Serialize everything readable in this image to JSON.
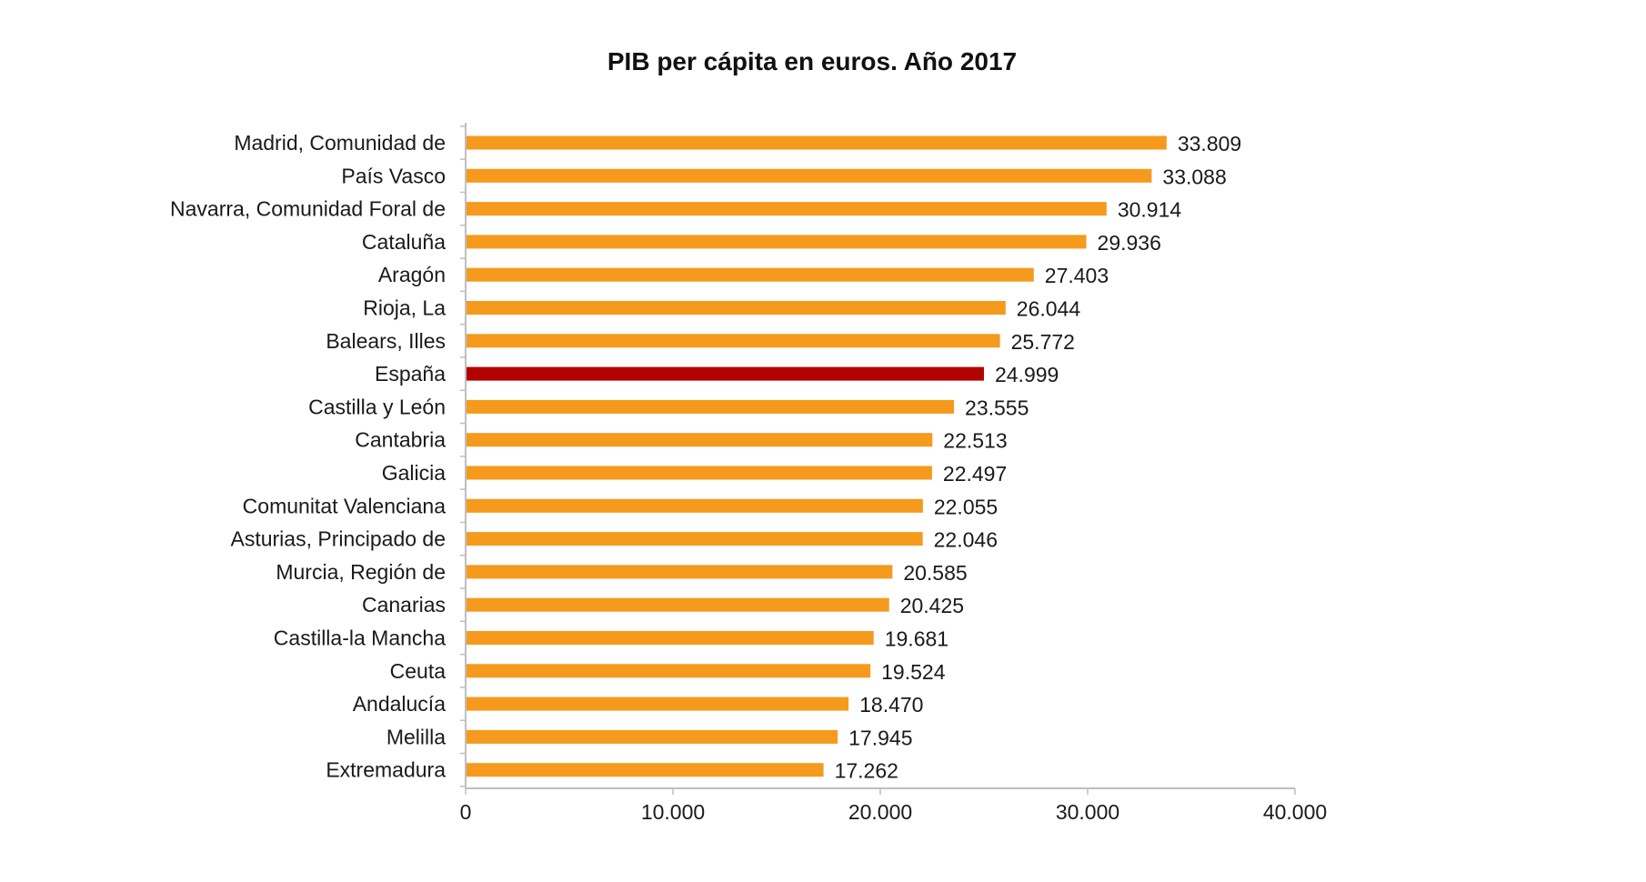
{
  "chart_data": {
    "type": "bar",
    "orientation": "horizontal",
    "title": "PIB per cápita en euros. Año 2017",
    "xlabel": "",
    "ylabel": "",
    "xlim": [
      0,
      40000
    ],
    "x_ticks": [
      0,
      10000,
      20000,
      30000,
      40000
    ],
    "x_tick_labels": [
      "0",
      "10.000",
      "20.000",
      "30.000",
      "40.000"
    ],
    "grid": false,
    "legend": "none",
    "categories": [
      "Madrid, Comunidad de",
      "País Vasco",
      "Navarra, Comunidad Foral de",
      "Cataluña",
      "Aragón",
      "Rioja, La",
      "Balears, Illes",
      "España",
      "Castilla y León",
      "Cantabria",
      "Galicia",
      "Comunitat Valenciana",
      "Asturias, Principado de",
      "Murcia, Región de",
      "Canarias",
      "Castilla-la Mancha",
      "Ceuta",
      "Andalucía",
      "Melilla",
      "Extremadura"
    ],
    "values": [
      33809,
      33088,
      30914,
      29936,
      27403,
      26044,
      25772,
      24999,
      23555,
      22513,
      22497,
      22055,
      22046,
      20585,
      20425,
      19681,
      19524,
      18470,
      17945,
      17262
    ],
    "value_labels": [
      "33.809",
      "33.088",
      "30.914",
      "29.936",
      "27.403",
      "26.044",
      "25.772",
      "24.999",
      "23.555",
      "22.513",
      "22.497",
      "22.055",
      "22.046",
      "20.585",
      "20.425",
      "19.681",
      "19.524",
      "18.470",
      "17.945",
      "17.262"
    ],
    "highlight_category": "España",
    "colors": {
      "bar": "#f59a1c",
      "highlight": "#b30000",
      "axis": "#bfbfbf",
      "text": "#1a1a1a"
    }
  }
}
